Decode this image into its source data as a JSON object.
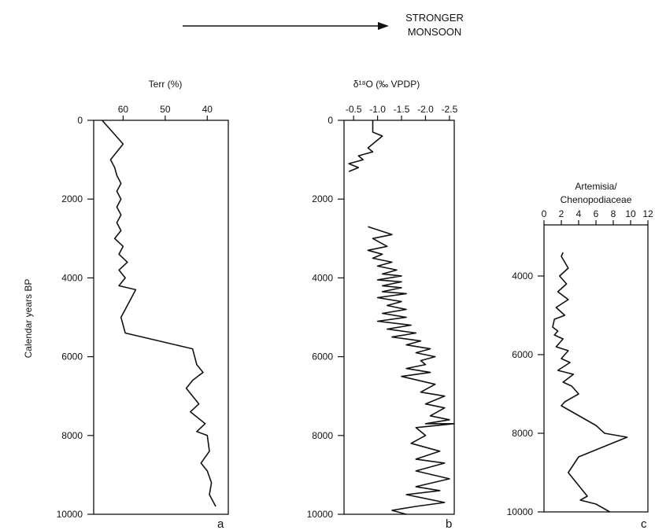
{
  "header": {
    "line1": "STRONGER",
    "line2": "MONSOON"
  },
  "ylabel": "Calendar years BP",
  "chart_data": [
    {
      "type": "line",
      "panel_letter": "a",
      "xlabel": "Terr (%)",
      "xlim": [
        67,
        35
      ],
      "ylim": [
        0,
        10000
      ],
      "x_ticks": [
        60,
        50,
        40
      ],
      "y_ticks": [
        0,
        2000,
        4000,
        6000,
        8000,
        10000
      ],
      "series": [
        {
          "x": [
            65,
            60,
            63,
            62,
            61.5,
            60.5,
            61.5,
            60.5,
            61.5,
            60.5,
            61.5,
            60.5,
            62,
            60,
            61,
            59,
            61,
            59.5,
            61,
            57,
            59.5,
            60.5,
            60,
            59.5,
            43.5,
            42.5,
            41,
            43.5,
            45,
            43.5,
            42,
            44,
            40.5,
            42.5,
            40,
            39.5,
            41.5,
            40,
            39,
            39.5,
            38
          ],
          "y": [
            0,
            600,
            1000,
            1200,
            1400,
            1600,
            1800,
            2000,
            2200,
            2400,
            2600,
            2800,
            3000,
            3200,
            3400,
            3600,
            3800,
            4000,
            4200,
            4300,
            4800,
            5000,
            5200,
            5400,
            5800,
            6200,
            6400,
            6600,
            6800,
            7000,
            7200,
            7400,
            7700,
            7900,
            8000,
            8400,
            8700,
            8900,
            9200,
            9500,
            9800
          ]
        }
      ]
    },
    {
      "type": "line",
      "panel_letter": "b",
      "xlabel": "δ¹⁸O (‰ VPDP)",
      "xlim": [
        -0.3,
        -2.6
      ],
      "ylim": [
        0,
        10000
      ],
      "x_ticks": [
        -0.5,
        -1.0,
        -1.5,
        -2.0,
        -2.5
      ],
      "x_tick_labels": [
        "-0.5",
        "-1.0",
        "-1.5",
        "-2.0",
        "-2.5"
      ],
      "y_ticks": [
        0,
        2000,
        4000,
        6000,
        8000,
        10000
      ],
      "series": [
        {
          "x": [
            -0.9,
            -0.9,
            -1.1,
            -0.8,
            -0.9,
            -0.6,
            -0.7,
            -0.4,
            -0.6,
            -0.4
          ],
          "y": [
            0,
            300,
            400,
            700,
            800,
            900,
            1000,
            1100,
            1200,
            1300
          ]
        },
        {
          "x": [
            -0.8,
            -1.3,
            -0.9,
            -1.2,
            -0.8,
            -1.1,
            -0.9,
            -1.3,
            -1.0,
            -1.4,
            -1.1,
            -1.5,
            -1.0,
            -1.5,
            -1.1,
            -1.5,
            -1.1,
            -1.6,
            -1.0,
            -1.5,
            -1.2,
            -1.6,
            -1.1,
            -1.6,
            -1.0,
            -1.7,
            -1.2,
            -1.8,
            -1.3,
            -1.9,
            -1.6,
            -2.1,
            -1.8,
            -2.2,
            -1.9,
            -2.0,
            -1.6,
            -2.1,
            -1.5,
            -2.2,
            -1.9,
            -2.4,
            -2.0,
            -2.4,
            -2.1,
            -2.5,
            -2.0,
            -2.6,
            -1.8,
            -2.0,
            -1.7,
            -2.3,
            -1.8,
            -2.4,
            -1.8,
            -2.5,
            -1.8,
            -2.3,
            -1.6,
            -2.4,
            -1.8,
            -1.3,
            -1.6
          ],
          "y": [
            2700,
            2900,
            3000,
            3200,
            3300,
            3400,
            3500,
            3600,
            3700,
            3800,
            3900,
            3950,
            4050,
            4100,
            4200,
            4250,
            4350,
            4400,
            4500,
            4600,
            4700,
            4800,
            4900,
            5000,
            5100,
            5200,
            5300,
            5400,
            5500,
            5600,
            5700,
            5800,
            5900,
            6000,
            6100,
            6200,
            6300,
            6400,
            6500,
            6700,
            6900,
            7000,
            7200,
            7300,
            7500,
            7600,
            7700,
            7700,
            7800,
            8000,
            8200,
            8400,
            8600,
            8700,
            8900,
            9100,
            9300,
            9400,
            9500,
            9700,
            9800,
            9900,
            10000
          ]
        }
      ]
    },
    {
      "type": "line",
      "panel_letter": "c",
      "title": "Artemisia/\nChenopodiaceae",
      "title_line1": "Artemisia/",
      "title_line2": "Chenopodiaceae",
      "xlim": [
        0,
        12
      ],
      "ylim": [
        2700,
        10000
      ],
      "x_ticks": [
        0,
        2,
        4,
        6,
        8,
        10,
        12
      ],
      "y_ticks": [
        4000,
        6000,
        8000,
        10000
      ],
      "series": [
        {
          "x": [
            2.2,
            2.0,
            2.8,
            1.8,
            2.6,
            1.6,
            2.8,
            1.4,
            2.4,
            1.2,
            1.0,
            1.6,
            1.2,
            2.2,
            1.4,
            2.8,
            2.0,
            3.0,
            1.6,
            3.4,
            2.2,
            3.2,
            4.0,
            2.4,
            2.0,
            3.6,
            4.4,
            6.0,
            7.0,
            9.6,
            4.0,
            2.8,
            5.0,
            4.2,
            6.0,
            7.6
          ],
          "y": [
            3400,
            3500,
            3800,
            4000,
            4200,
            4400,
            4600,
            4800,
            5000,
            5100,
            5300,
            5400,
            5500,
            5600,
            5800,
            5900,
            6100,
            6200,
            6400,
            6500,
            6700,
            6800,
            7000,
            7200,
            7300,
            7500,
            7600,
            7800,
            8000,
            8100,
            8600,
            9000,
            9600,
            9700,
            9800,
            10000
          ]
        }
      ]
    }
  ]
}
